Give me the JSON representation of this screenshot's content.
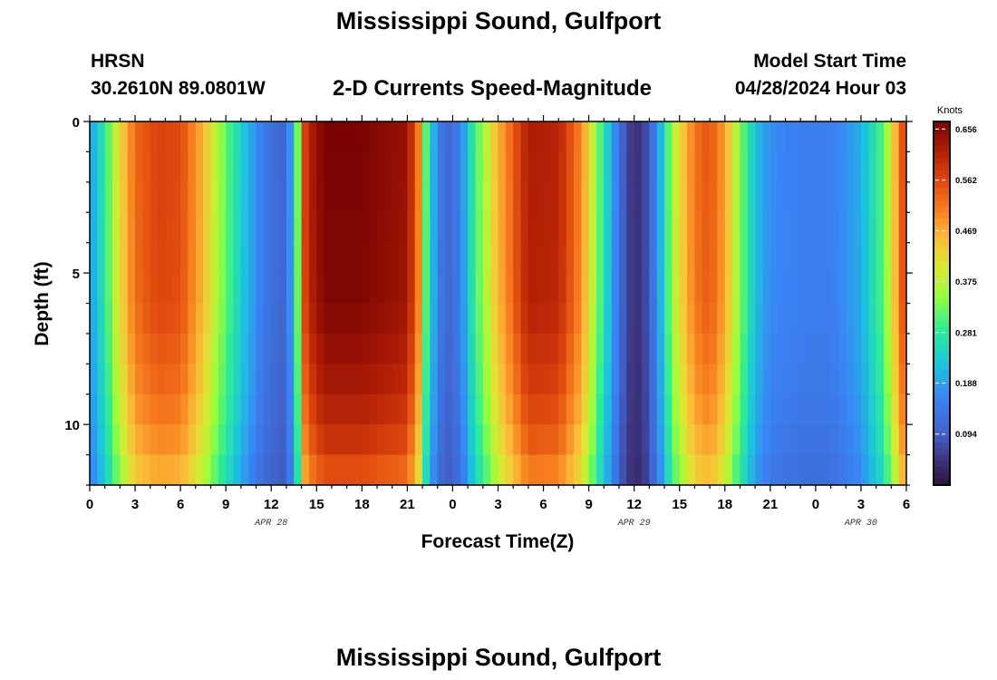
{
  "header": {
    "title": "Mississippi Sound, Gulfport",
    "station_id": "HRSN",
    "station_coords": "30.2610N  89.0801W",
    "chart_title": "2-D Currents Speed-Magnitude",
    "model_start_label": "Model Start Time",
    "model_start_value": "04/28/2024 Hour 03"
  },
  "footer": {
    "title": "Mississippi Sound, Gulfport"
  },
  "chart_data": {
    "type": "heatmap",
    "title": "2-D Currents Speed-Magnitude",
    "xlabel": "Forecast Time(Z)",
    "ylabel": "Depth (ft)",
    "ylim": [
      0,
      12
    ],
    "xlim_hours": [
      0,
      54
    ],
    "x_tick_labels": [
      "0",
      "3",
      "6",
      "9",
      "12",
      "15",
      "18",
      "21",
      "0",
      "3",
      "6",
      "9",
      "12",
      "15",
      "18",
      "21",
      "0",
      "3",
      "6"
    ],
    "y_ticks": [
      0,
      5,
      10
    ],
    "y_tick_labels": [
      "0",
      "5",
      "10"
    ],
    "date_labels": [
      {
        "label": "APR 28",
        "hour": 12
      },
      {
        "label": "APR 29",
        "hour": 36
      },
      {
        "label": "APR 30",
        "hour": 51
      }
    ],
    "colorbar": {
      "title": "Knots",
      "range": [
        0.0,
        0.67
      ],
      "ticks": [
        0.094,
        0.188,
        0.281,
        0.375,
        0.469,
        0.562,
        0.656
      ],
      "tick_labels": [
        "0.094",
        "0.188",
        "0.281",
        "0.375",
        "0.469",
        "0.562",
        "0.656"
      ]
    },
    "surface_speed_keyframes": [
      {
        "hour": 0,
        "knots": 0.18
      },
      {
        "hour": 1,
        "knots": 0.28
      },
      {
        "hour": 2,
        "knots": 0.42
      },
      {
        "hour": 3,
        "knots": 0.53
      },
      {
        "hour": 4.5,
        "knots": 0.57
      },
      {
        "hour": 6,
        "knots": 0.56
      },
      {
        "hour": 7.5,
        "knots": 0.46
      },
      {
        "hour": 8.5,
        "knots": 0.36
      },
      {
        "hour": 10,
        "knots": 0.24
      },
      {
        "hour": 11.5,
        "knots": 0.14
      },
      {
        "hour": 13,
        "knots": 0.1
      },
      {
        "hour": 13.7,
        "knots": 0.3
      },
      {
        "hour": 14.3,
        "knots": 0.6
      },
      {
        "hour": 15.5,
        "knots": 0.67
      },
      {
        "hour": 18,
        "knots": 0.67
      },
      {
        "hour": 21,
        "knots": 0.64
      },
      {
        "hour": 21.8,
        "knots": 0.5
      },
      {
        "hour": 22.4,
        "knots": 0.25
      },
      {
        "hour": 23.5,
        "knots": 0.1
      },
      {
        "hour": 24.5,
        "knots": 0.15
      },
      {
        "hour": 25.5,
        "knots": 0.3
      },
      {
        "hour": 27,
        "knots": 0.46
      },
      {
        "hour": 29,
        "knots": 0.62
      },
      {
        "hour": 31,
        "knots": 0.61
      },
      {
        "hour": 32.5,
        "knots": 0.5
      },
      {
        "hour": 33.5,
        "knots": 0.35
      },
      {
        "hour": 34.5,
        "knots": 0.2
      },
      {
        "hour": 35.5,
        "knots": 0.06
      },
      {
        "hour": 36.5,
        "knots": 0.04
      },
      {
        "hour": 37.5,
        "knots": 0.16
      },
      {
        "hour": 38.5,
        "knots": 0.36
      },
      {
        "hour": 40,
        "knots": 0.52
      },
      {
        "hour": 41,
        "knots": 0.55
      },
      {
        "hour": 42,
        "knots": 0.48
      },
      {
        "hour": 43,
        "knots": 0.34
      },
      {
        "hour": 44,
        "knots": 0.22
      },
      {
        "hour": 45,
        "knots": 0.17
      },
      {
        "hour": 47,
        "knots": 0.15
      },
      {
        "hour": 49,
        "knots": 0.15
      },
      {
        "hour": 51,
        "knots": 0.2
      },
      {
        "hour": 52.5,
        "knots": 0.32
      },
      {
        "hour": 53.5,
        "knots": 0.5
      },
      {
        "hour": 54,
        "knots": 0.6
      }
    ],
    "depth_factor": [
      {
        "depth_ft": 0,
        "factor": 1.0
      },
      {
        "depth_ft": 6,
        "factor": 0.99
      },
      {
        "depth_ft": 9,
        "factor": 0.93
      },
      {
        "depth_ft": 11,
        "factor": 0.86
      },
      {
        "depth_ft": 12,
        "factor": 0.8
      }
    ]
  }
}
